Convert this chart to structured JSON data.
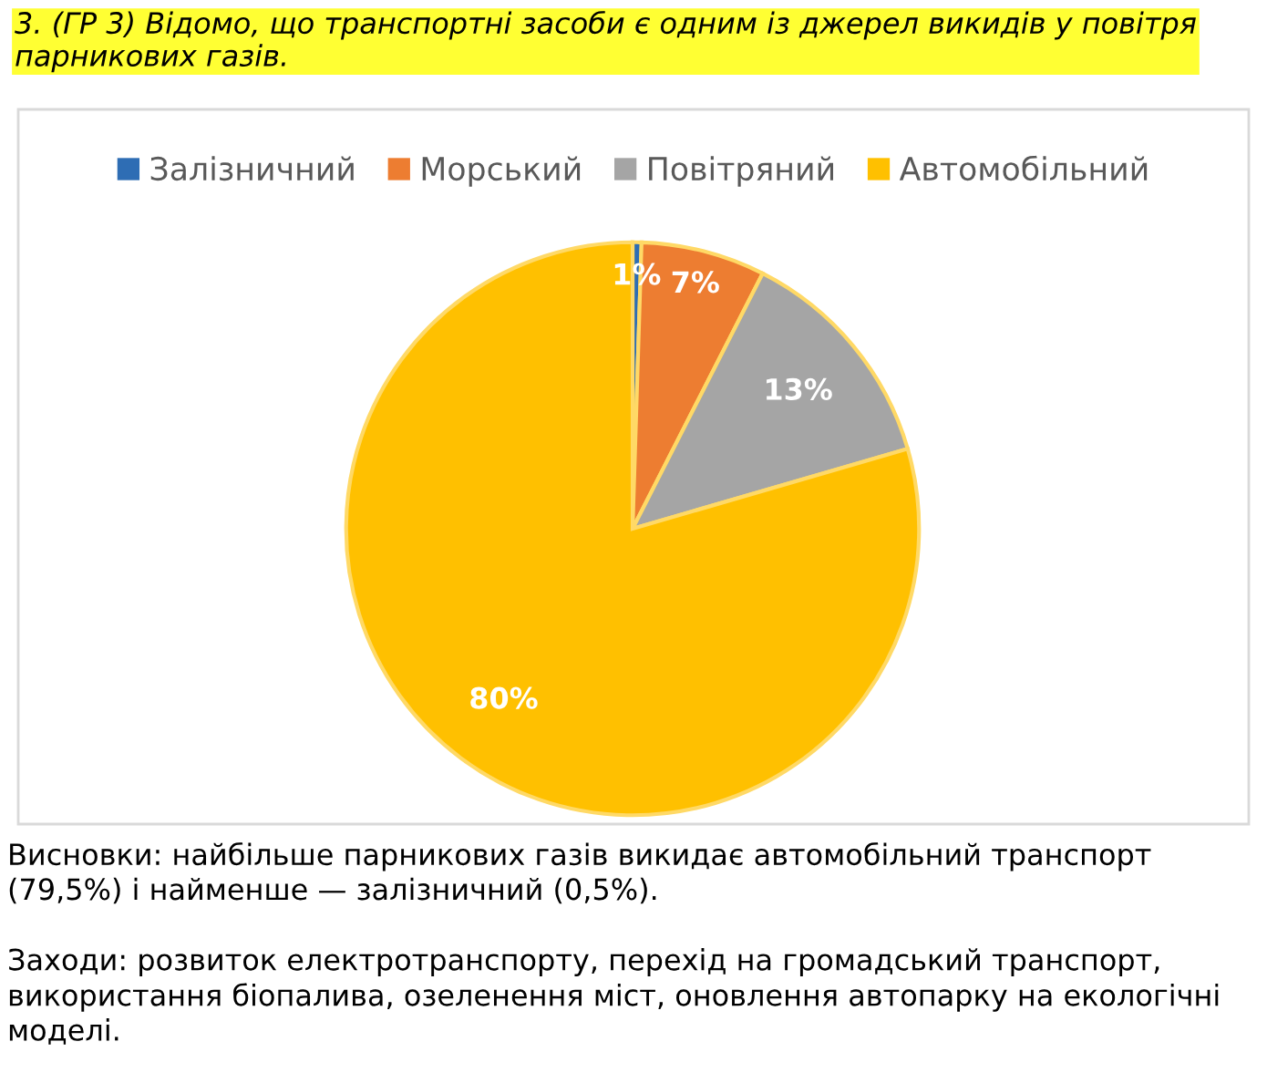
{
  "chart_data": {
    "type": "pie",
    "title": "3. (ГР 3) Відомо, що транспортні засоби є одним із джерел викидів у повітря парникових газів.",
    "categories": [
      "Залізничний",
      "Морський",
      "Повітряний",
      "Автомобільний"
    ],
    "values": [
      0.5,
      7,
      13,
      79.5
    ],
    "value_labels": [
      "1%",
      "7%",
      "13%",
      "80%"
    ],
    "colors": [
      "#2e6db4",
      "#ed7d31",
      "#a5a5a5",
      "#ffc000"
    ],
    "legend": "top",
    "annotations": [
      "Висновки: найбільше парникових газів викидає автомобільний транспорт (79,5%) і найменше — залізничний (0,5%).",
      "Заходи: розвиток електротранспорту, перехід на громадський транспорт, використання біопалива, озеленення міст, оновлення автопарку на екологічні моделі."
    ]
  }
}
